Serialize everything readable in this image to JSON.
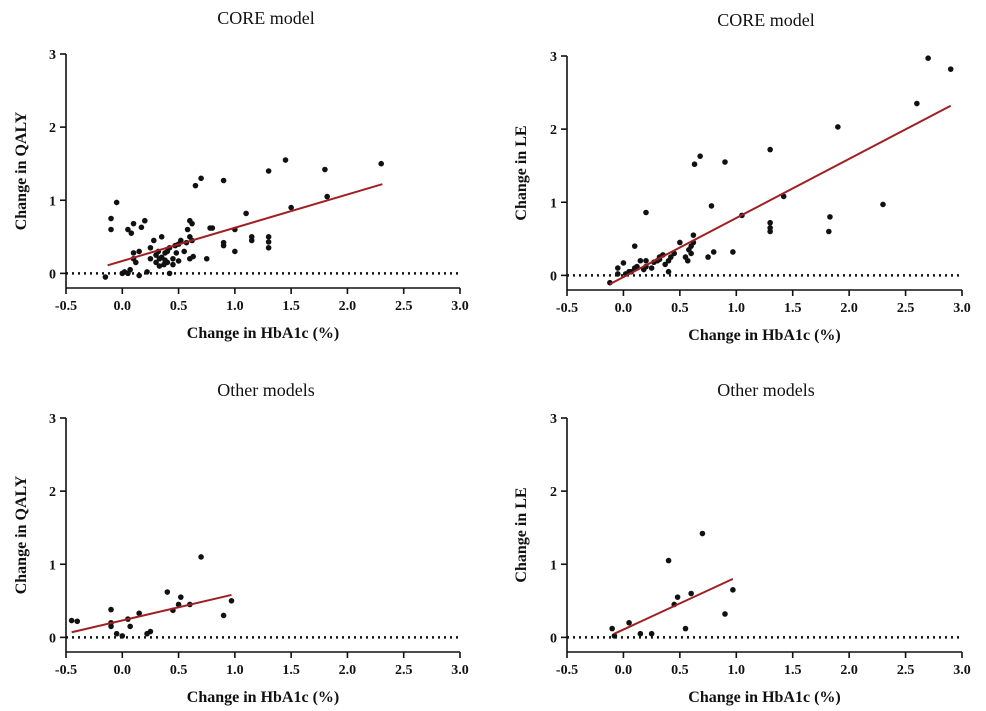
{
  "figure": {
    "colors": {
      "points": "#111111",
      "fit_line": "#a01f22",
      "axes": "#111111",
      "zero_line": "#111111"
    }
  },
  "chart_data": [
    {
      "type": "scatter",
      "title": "CORE model",
      "xlabel": "Change in HbA1c (%)",
      "ylabel": "Change in QALY",
      "xlim": [
        -0.5,
        3.0
      ],
      "ylim": [
        -0.2,
        3.0
      ],
      "x_ticks": [
        "-0.5",
        "0.0",
        "0.5",
        "1.0",
        "1.5",
        "2.0",
        "2.5",
        "3.0"
      ],
      "y_ticks": [
        "0",
        "1",
        "2",
        "3"
      ],
      "zero_reference_line": true,
      "grid": false,
      "fit_line": {
        "x": [
          -0.13,
          2.31
        ],
        "y": [
          0.11,
          1.22
        ]
      },
      "points": [
        [
          -0.15,
          -0.05
        ],
        [
          -0.1,
          0.6
        ],
        [
          -0.1,
          0.75
        ],
        [
          -0.05,
          0.97
        ],
        [
          0.0,
          0.0
        ],
        [
          0.02,
          0.02
        ],
        [
          0.05,
          0.0
        ],
        [
          0.05,
          0.6
        ],
        [
          0.07,
          0.05
        ],
        [
          0.08,
          0.55
        ],
        [
          0.1,
          0.2
        ],
        [
          0.1,
          0.28
        ],
        [
          0.1,
          0.68
        ],
        [
          0.12,
          0.15
        ],
        [
          0.15,
          -0.03
        ],
        [
          0.15,
          0.3
        ],
        [
          0.17,
          0.63
        ],
        [
          0.2,
          0.72
        ],
        [
          0.22,
          0.02
        ],
        [
          0.25,
          0.2
        ],
        [
          0.25,
          0.35
        ],
        [
          0.28,
          0.45
        ],
        [
          0.3,
          0.15
        ],
        [
          0.3,
          0.25
        ],
        [
          0.32,
          0.3
        ],
        [
          0.33,
          0.1
        ],
        [
          0.33,
          0.2
        ],
        [
          0.35,
          0.22
        ],
        [
          0.35,
          0.5
        ],
        [
          0.37,
          0.12
        ],
        [
          0.38,
          0.18
        ],
        [
          0.38,
          0.28
        ],
        [
          0.4,
          0.15
        ],
        [
          0.4,
          0.3
        ],
        [
          0.42,
          0.35
        ],
        [
          0.42,
          0.0
        ],
        [
          0.45,
          0.2
        ],
        [
          0.45,
          0.12
        ],
        [
          0.47,
          0.38
        ],
        [
          0.48,
          0.28
        ],
        [
          0.5,
          0.17
        ],
        [
          0.5,
          0.4
        ],
        [
          0.52,
          0.45
        ],
        [
          0.55,
          0.3
        ],
        [
          0.57,
          0.42
        ],
        [
          0.58,
          0.6
        ],
        [
          0.6,
          0.2
        ],
        [
          0.6,
          0.5
        ],
        [
          0.6,
          0.72
        ],
        [
          0.62,
          0.68
        ],
        [
          0.62,
          0.45
        ],
        [
          0.63,
          0.23
        ],
        [
          0.65,
          1.2
        ],
        [
          0.7,
          1.3
        ],
        [
          0.75,
          0.2
        ],
        [
          0.78,
          0.62
        ],
        [
          0.8,
          0.62
        ],
        [
          0.9,
          1.27
        ],
        [
          0.9,
          0.38
        ],
        [
          0.9,
          0.42
        ],
        [
          1.0,
          0.3
        ],
        [
          1.0,
          0.6
        ],
        [
          1.1,
          0.82
        ],
        [
          1.15,
          0.45
        ],
        [
          1.15,
          0.5
        ],
        [
          1.3,
          0.35
        ],
        [
          1.3,
          0.43
        ],
        [
          1.3,
          0.5
        ],
        [
          1.3,
          1.4
        ],
        [
          1.45,
          1.55
        ],
        [
          1.5,
          0.9
        ],
        [
          1.8,
          1.42
        ],
        [
          1.82,
          1.05
        ],
        [
          2.3,
          1.5
        ]
      ]
    },
    {
      "type": "scatter",
      "title": "CORE model",
      "xlabel": "Change in HbA1c (%)",
      "ylabel": "Change in LE",
      "xlim": [
        -0.5,
        3.0
      ],
      "ylim": [
        -0.2,
        3.0
      ],
      "x_ticks": [
        "-0.5",
        "0.0",
        "0.5",
        "1.0",
        "1.5",
        "2.0",
        "2.5",
        "3.0"
      ],
      "y_ticks": [
        "0",
        "1",
        "2",
        "3"
      ],
      "zero_reference_line": true,
      "grid": false,
      "fit_line": {
        "x": [
          -0.12,
          2.9
        ],
        "y": [
          -0.12,
          2.32
        ]
      },
      "points": [
        [
          -0.12,
          -0.1
        ],
        [
          -0.05,
          0.02
        ],
        [
          -0.05,
          0.1
        ],
        [
          0.0,
          0.17
        ],
        [
          0.02,
          0.02
        ],
        [
          0.05,
          0.05
        ],
        [
          0.07,
          0.05
        ],
        [
          0.1,
          0.1
        ],
        [
          0.1,
          0.4
        ],
        [
          0.12,
          0.12
        ],
        [
          0.15,
          0.2
        ],
        [
          0.18,
          0.08
        ],
        [
          0.2,
          0.12
        ],
        [
          0.2,
          0.2
        ],
        [
          0.2,
          0.86
        ],
        [
          0.25,
          0.1
        ],
        [
          0.27,
          0.18
        ],
        [
          0.3,
          0.2
        ],
        [
          0.32,
          0.22
        ],
        [
          0.32,
          0.25
        ],
        [
          0.35,
          0.28
        ],
        [
          0.37,
          0.15
        ],
        [
          0.4,
          0.05
        ],
        [
          0.4,
          0.2
        ],
        [
          0.42,
          0.25
        ],
        [
          0.45,
          0.3
        ],
        [
          0.5,
          0.45
        ],
        [
          0.55,
          0.25
        ],
        [
          0.57,
          0.2
        ],
        [
          0.58,
          0.35
        ],
        [
          0.6,
          0.3
        ],
        [
          0.6,
          0.4
        ],
        [
          0.62,
          0.45
        ],
        [
          0.62,
          0.55
        ],
        [
          0.63,
          1.52
        ],
        [
          0.68,
          1.63
        ],
        [
          0.75,
          0.25
        ],
        [
          0.78,
          0.95
        ],
        [
          0.8,
          0.32
        ],
        [
          0.9,
          1.55
        ],
        [
          0.97,
          0.32
        ],
        [
          1.05,
          0.82
        ],
        [
          1.3,
          0.6
        ],
        [
          1.3,
          0.65
        ],
        [
          1.3,
          0.72
        ],
        [
          1.3,
          1.72
        ],
        [
          1.42,
          1.08
        ],
        [
          1.82,
          0.6
        ],
        [
          1.83,
          0.8
        ],
        [
          1.9,
          2.03
        ],
        [
          2.3,
          0.97
        ],
        [
          2.6,
          2.35
        ],
        [
          2.7,
          2.97
        ],
        [
          2.9,
          2.82
        ]
      ]
    },
    {
      "type": "scatter",
      "title": "Other models",
      "xlabel": "Change in HbA1c (%)",
      "ylabel": "Change in QALY",
      "xlim": [
        -0.5,
        3.0
      ],
      "ylim": [
        -0.2,
        3.0
      ],
      "x_ticks": [
        "-0.5",
        "0.0",
        "0.5",
        "1.0",
        "1.5",
        "2.0",
        "2.5",
        "3.0"
      ],
      "y_ticks": [
        "0",
        "1",
        "2",
        "3"
      ],
      "zero_reference_line": true,
      "grid": false,
      "fit_line": {
        "x": [
          -0.45,
          0.97
        ],
        "y": [
          0.07,
          0.58
        ]
      },
      "points": [
        [
          -0.45,
          0.23
        ],
        [
          -0.4,
          0.22
        ],
        [
          -0.1,
          0.38
        ],
        [
          -0.1,
          0.15
        ],
        [
          -0.1,
          0.2
        ],
        [
          -0.05,
          0.05
        ],
        [
          0.0,
          0.02
        ],
        [
          0.05,
          0.25
        ],
        [
          0.07,
          0.15
        ],
        [
          0.15,
          0.33
        ],
        [
          0.22,
          0.05
        ],
        [
          0.25,
          0.08
        ],
        [
          0.4,
          0.62
        ],
        [
          0.45,
          0.37
        ],
        [
          0.5,
          0.45
        ],
        [
          0.52,
          0.55
        ],
        [
          0.6,
          0.45
        ],
        [
          0.7,
          1.1
        ],
        [
          0.9,
          0.3
        ],
        [
          0.97,
          0.5
        ]
      ]
    },
    {
      "type": "scatter",
      "title": "Other models",
      "xlabel": "Change in HbA1c (%)",
      "ylabel": "Change in LE",
      "xlim": [
        -0.5,
        3.0
      ],
      "ylim": [
        -0.2,
        3.0
      ],
      "x_ticks": [
        "-0.5",
        "0.0",
        "0.5",
        "1.0",
        "1.5",
        "2.0",
        "2.5",
        "3.0"
      ],
      "y_ticks": [
        "0",
        "1",
        "2",
        "3"
      ],
      "zero_reference_line": true,
      "grid": false,
      "fit_line": {
        "x": [
          -0.08,
          0.97
        ],
        "y": [
          0.05,
          0.8
        ]
      },
      "points": [
        [
          -0.1,
          0.12
        ],
        [
          -0.08,
          0.02
        ],
        [
          0.05,
          0.2
        ],
        [
          0.15,
          0.05
        ],
        [
          0.25,
          0.05
        ],
        [
          0.4,
          1.05
        ],
        [
          0.45,
          0.45
        ],
        [
          0.48,
          0.55
        ],
        [
          0.55,
          0.12
        ],
        [
          0.6,
          0.6
        ],
        [
          0.7,
          1.42
        ],
        [
          0.9,
          0.32
        ],
        [
          0.97,
          0.65
        ]
      ]
    }
  ]
}
